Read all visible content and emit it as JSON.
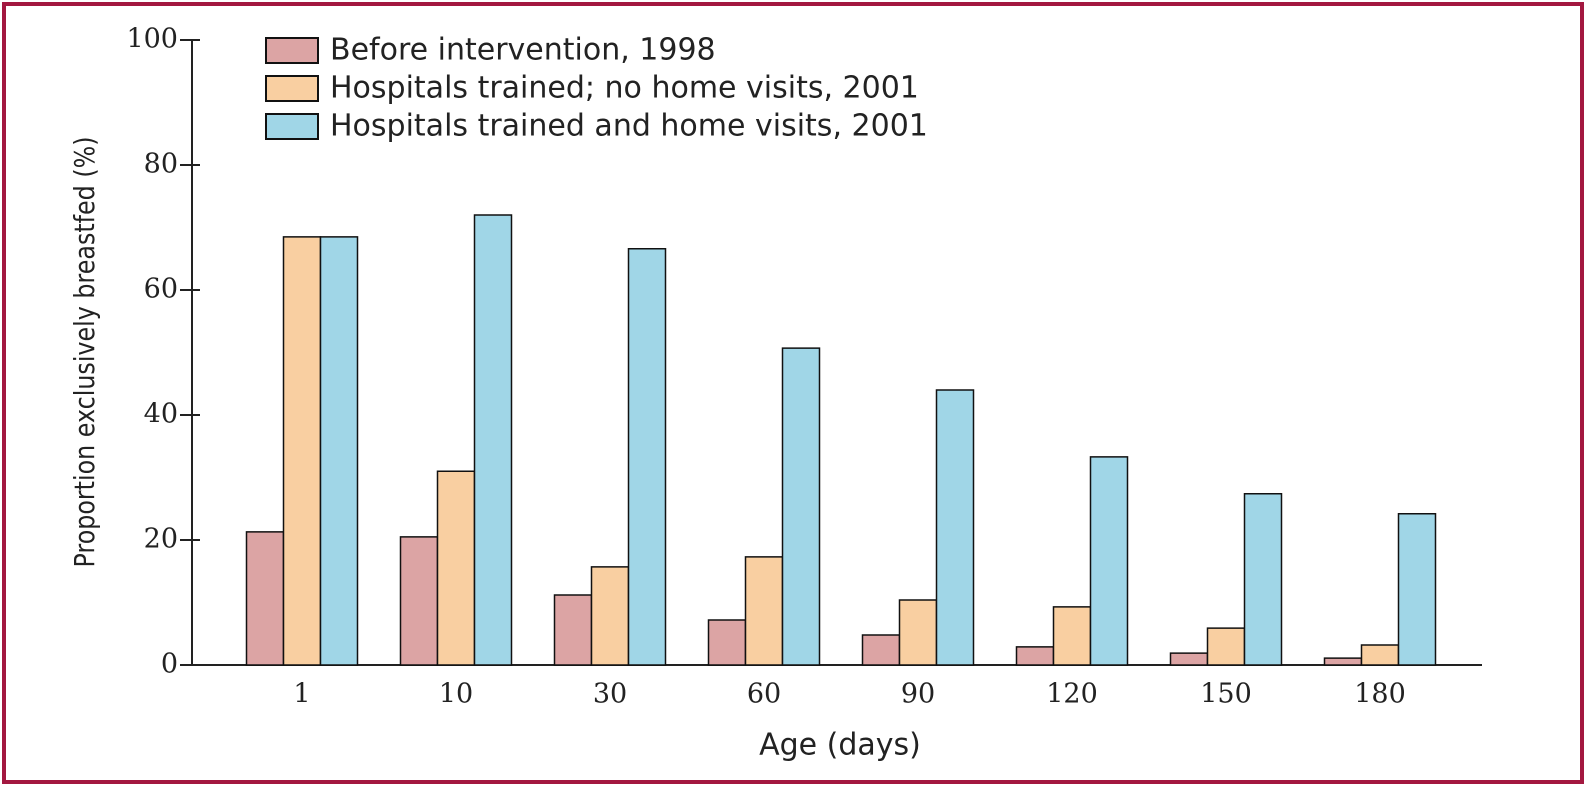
{
  "chart_data": {
    "type": "bar",
    "x_label": "Age (days)",
    "y_label": "Proportion exclusively breastfed (%)",
    "categories": [
      "1",
      "10",
      "30",
      "60",
      "90",
      "120",
      "150",
      "180"
    ],
    "series": [
      {
        "name": "Before intervention, 1998",
        "color": "#dca4a4",
        "values": [
          21.3,
          20.5,
          11.2,
          7.2,
          4.8,
          2.9,
          1.9,
          1.1
        ]
      },
      {
        "name": "Hospitals trained; no home visits, 2001",
        "color": "#f9cfa1",
        "values": [
          68.5,
          31,
          15.7,
          17.3,
          10.4,
          9.3,
          5.9,
          3.2
        ]
      },
      {
        "name": "Hospitals trained and home visits, 2001",
        "color": "#a0d6e7",
        "values": [
          68.5,
          72,
          66.6,
          50.7,
          44,
          33.3,
          27.4,
          24.2
        ]
      }
    ],
    "ylim": [
      0,
      100
    ],
    "yticks": [
      0,
      20,
      40,
      60,
      80,
      100
    ],
    "legend": "top-left"
  }
}
